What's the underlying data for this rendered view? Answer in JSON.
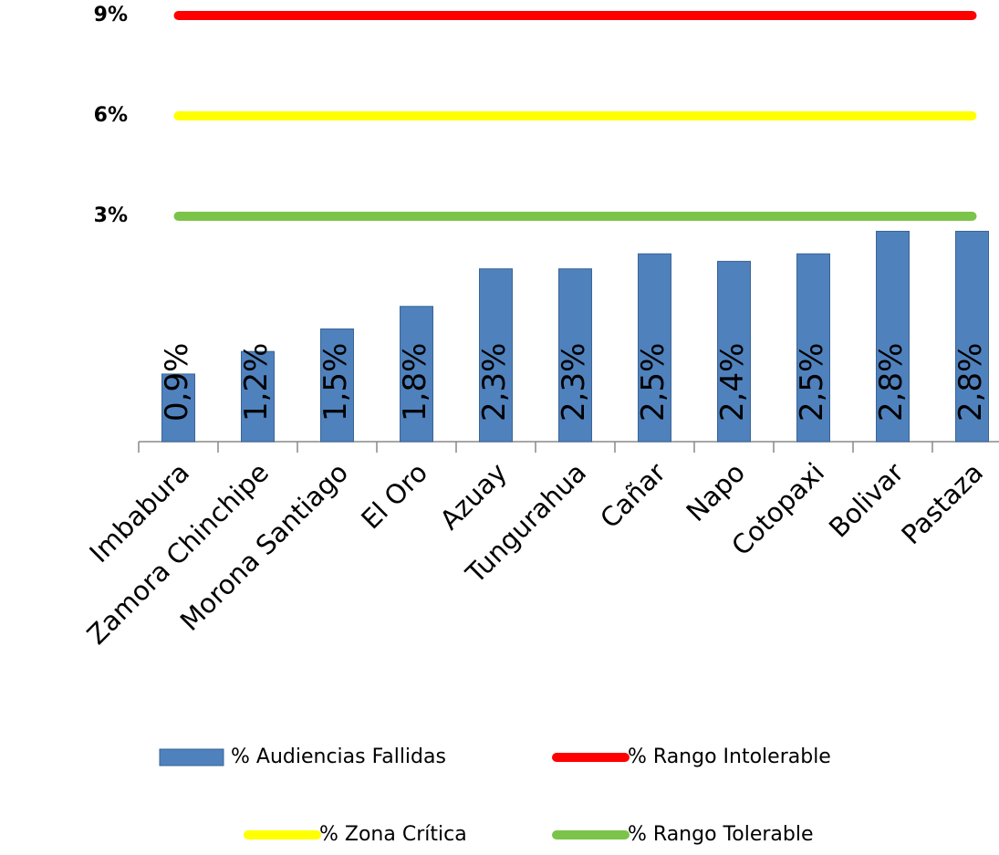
{
  "chart_data": {
    "type": "bar",
    "categories": [
      "Imbabura",
      "Zamora Chinchipe",
      "Morona Santiago",
      "El Oro",
      "Azuay",
      "Tungurahua",
      "Cañar",
      "Napo",
      "Cotopaxi",
      "Bolivar",
      "Pastaza"
    ],
    "series": [
      {
        "name": "% Audiencias Fallidas",
        "type": "bar",
        "color": "#4f81bd",
        "values": [
          0.9,
          1.2,
          1.5,
          1.8,
          2.3,
          2.3,
          2.5,
          2.4,
          2.5,
          2.8,
          2.8
        ],
        "value_labels": [
          "0,9%",
          "1,2%",
          "1,5%",
          "1,8%",
          "2,3%",
          "2,3%",
          "2,5%",
          "2,4%",
          "2,5%",
          "2,8%",
          "2,8%"
        ]
      },
      {
        "name": "% Rango Intolerable",
        "type": "line",
        "color": "#ff0000",
        "values": [
          9,
          9,
          9,
          9,
          9,
          9,
          9,
          9,
          9,
          9,
          9
        ]
      },
      {
        "name": "% Zona Crítica",
        "type": "line",
        "color": "#ffff00",
        "values": [
          6,
          6,
          6,
          6,
          6,
          6,
          6,
          6,
          6,
          6,
          6
        ]
      },
      {
        "name": "% Rango Tolerable",
        "type": "line",
        "color": "#7cc34a",
        "values": [
          3,
          3,
          3,
          3,
          3,
          3,
          3,
          3,
          3,
          3,
          3
        ]
      }
    ],
    "ylim": [
      0,
      9
    ],
    "yticks": [
      {
        "value": 3,
        "label": "3%"
      },
      {
        "value": 6,
        "label": "6%"
      },
      {
        "value": 9,
        "label": "9%"
      }
    ],
    "grid": false,
    "legend": "bottom"
  }
}
